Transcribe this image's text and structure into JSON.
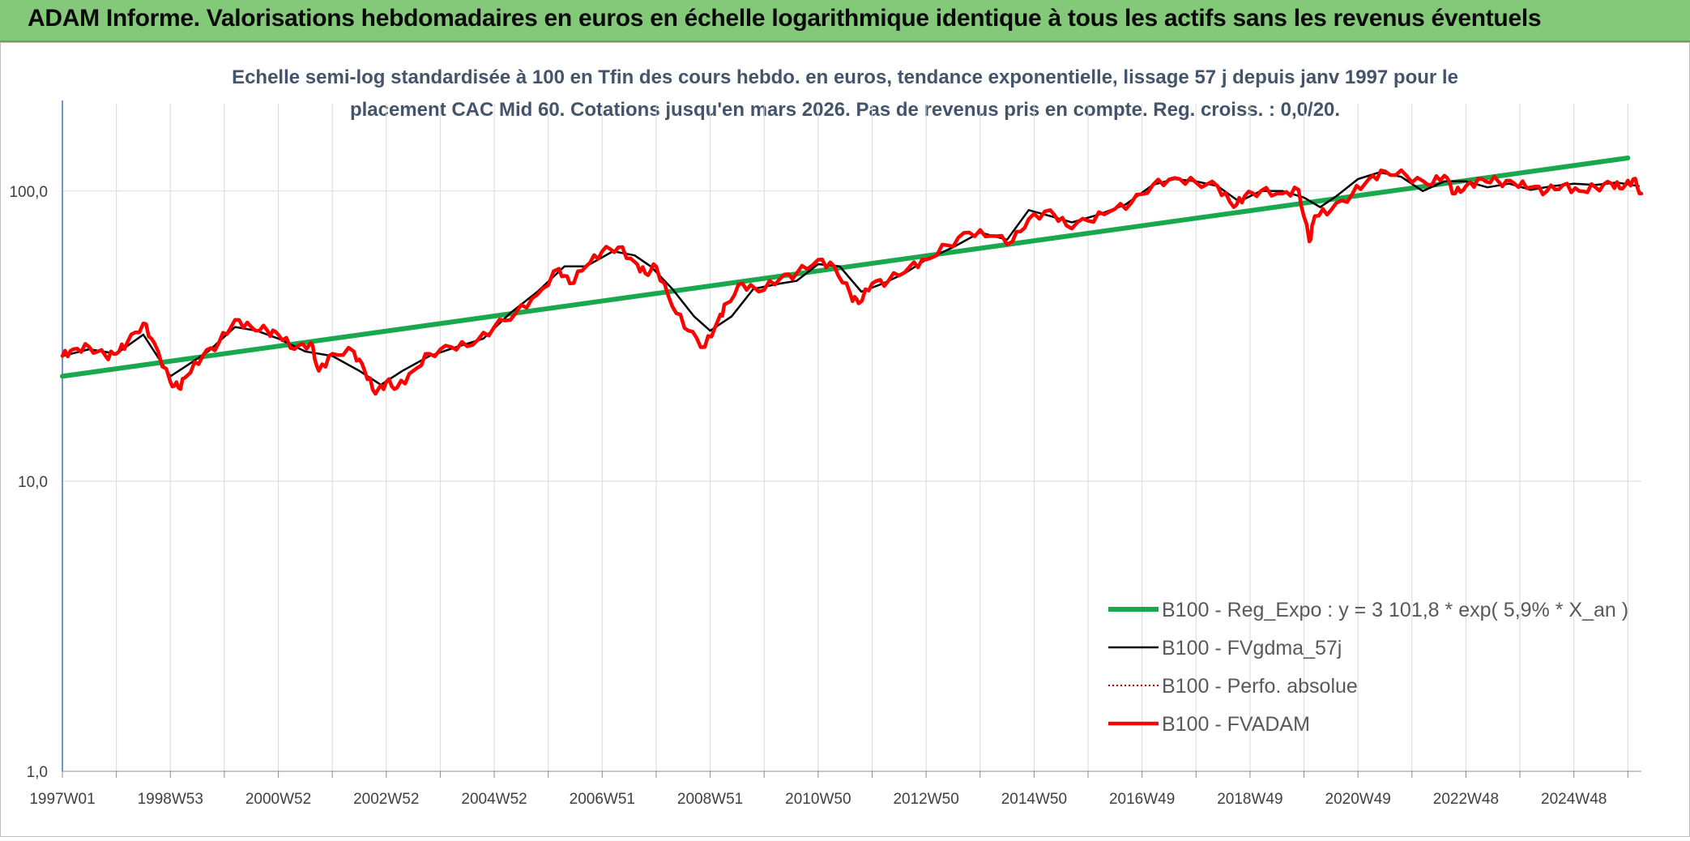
{
  "header": {
    "title": "ADAM Informe. Valorisations hebdomadaires en euros en échelle logarithmique identique à tous les actifs sans les revenus éventuels"
  },
  "colors": {
    "banner": "#84c97a",
    "corner": "#f2b705",
    "trend": "#1aa84f",
    "smooth": "#000000",
    "perf": "#c00000",
    "adam": "#ff0000",
    "grid": "#d9d9d9",
    "axis": "#4472c4",
    "title_text": "#44546a"
  },
  "chart_data": {
    "type": "line",
    "title_lines": [
      "Echelle semi-log standardisée à 100 en Tfin des cours hebdo. en euros, tendance exponentielle, lissage 57 j depuis janv 1997 pour le",
      "placement CAC Mid 60. Cotations jusqu'en mars 2026. Pas de revenus pris en compte. Reg. croiss. : 0,0/20."
    ],
    "y_scale": "log",
    "ylim": [
      1,
      200
    ],
    "y_ticks": [
      {
        "value": 1,
        "label": "1,0"
      },
      {
        "value": 10,
        "label": "10,0"
      },
      {
        "value": 100,
        "label": "100,0"
      }
    ],
    "xlim": [
      1997.0,
      2026.25
    ],
    "x_ticks": [
      {
        "value": 1997.0,
        "label": "1997W01"
      },
      {
        "value": 1999.0,
        "label": "1998W53"
      },
      {
        "value": 2001.0,
        "label": "2000W52"
      },
      {
        "value": 2003.0,
        "label": "2002W52"
      },
      {
        "value": 2005.0,
        "label": "2004W52"
      },
      {
        "value": 2007.0,
        "label": "2006W51"
      },
      {
        "value": 2009.0,
        "label": "2008W51"
      },
      {
        "value": 2011.0,
        "label": "2010W50"
      },
      {
        "value": 2013.0,
        "label": "2012W50"
      },
      {
        "value": 2015.0,
        "label": "2014W50"
      },
      {
        "value": 2017.0,
        "label": "2016W49"
      },
      {
        "value": 2019.0,
        "label": "2018W49"
      },
      {
        "value": 2021.0,
        "label": "2020W49"
      },
      {
        "value": 2023.0,
        "label": "2022W48"
      },
      {
        "value": 2025.0,
        "label": "2024W48"
      }
    ],
    "legend_position": "bottom-right",
    "series": [
      {
        "name": "B100 - Reg_Expo : y = 3 101,8 * exp( 5,9% *  X_an )",
        "key": "trend",
        "style": "solid-thick",
        "x": [
          1997.0,
          2026.0
        ],
        "y": [
          23,
          130
        ]
      },
      {
        "name": "B100 - FVgdma_57j",
        "key": "smooth",
        "style": "solid",
        "x": [
          1997.0,
          1997.5,
          1998.0,
          1998.5,
          1999.0,
          1999.3,
          1999.7,
          2000.2,
          2000.6,
          2001.0,
          2001.5,
          2002.0,
          2002.5,
          2002.9,
          2003.3,
          2003.8,
          2004.3,
          2004.8,
          2005.3,
          2005.8,
          2006.3,
          2006.7,
          2007.2,
          2007.6,
          2007.9,
          2008.3,
          2008.7,
          2009.0,
          2009.4,
          2009.8,
          2010.3,
          2010.6,
          2011.0,
          2011.4,
          2011.8,
          2012.2,
          2012.6,
          2013.0,
          2013.5,
          2014.0,
          2014.5,
          2014.9,
          2015.3,
          2015.7,
          2016.2,
          2016.7,
          2017.2,
          2017.6,
          2018.0,
          2018.4,
          2018.8,
          2019.2,
          2019.6,
          2020.0,
          2020.3,
          2020.6,
          2021.0,
          2021.4,
          2021.8,
          2022.2,
          2022.6,
          2023.0,
          2023.4,
          2023.8,
          2024.2,
          2024.6,
          2025.0,
          2025.4,
          2025.8,
          2026.2
        ],
        "y": [
          27,
          28.5,
          27.5,
          32,
          23,
          25,
          28,
          34,
          33,
          31,
          28,
          27,
          24,
          21.5,
          24,
          27,
          29,
          31,
          38,
          45,
          55,
          55,
          62,
          60,
          55,
          46,
          37,
          33,
          37,
          46,
          48,
          49,
          56,
          55,
          45,
          48,
          52,
          58,
          64,
          72,
          68,
          86,
          82,
          78,
          83,
          90,
          105,
          110,
          108,
          104,
          92,
          100,
          100,
          95,
          88,
          96,
          110,
          116,
          112,
          100,
          108,
          108,
          103,
          106,
          101,
          104,
          106,
          105,
          107,
          104
        ]
      },
      {
        "name": "B100 - Perfo. absolue",
        "key": "perf",
        "style": "dotted",
        "x": [],
        "y": []
      },
      {
        "name": "B100 - FVADAM",
        "key": "adam",
        "style": "solid-thick",
        "x": [
          1997.0,
          1997.2,
          1997.5,
          1997.8,
          1998.0,
          1998.2,
          1998.5,
          1998.7,
          1999.0,
          1999.15,
          1999.3,
          1999.6,
          1999.9,
          2000.2,
          2000.5,
          2000.8,
          2001.0,
          2001.3,
          2001.6,
          2001.75,
          2002.0,
          2002.4,
          2002.6,
          2002.8,
          2003.0,
          2003.2,
          2003.5,
          2003.8,
          2004.2,
          2004.6,
          2005.0,
          2005.4,
          2005.8,
          2006.2,
          2006.4,
          2006.7,
          2007.0,
          2007.3,
          2007.6,
          2007.8,
          2008.0,
          2008.3,
          2008.6,
          2008.9,
          2009.15,
          2009.3,
          2009.6,
          2009.9,
          2010.3,
          2010.6,
          2011.0,
          2011.3,
          2011.6,
          2011.75,
          2012.0,
          2012.3,
          2012.7,
          2013.0,
          2013.4,
          2013.8,
          2014.2,
          2014.6,
          2014.9,
          2015.3,
          2015.6,
          2016.0,
          2016.4,
          2016.8,
          2017.2,
          2017.6,
          2018.0,
          2018.4,
          2018.7,
          2018.9,
          2019.2,
          2019.6,
          2019.9,
          2020.1,
          2020.2,
          2020.5,
          2020.9,
          2021.2,
          2021.5,
          2021.9,
          2022.3,
          2022.6,
          2022.8,
          2023.0,
          2023.3,
          2023.6,
          2023.9,
          2024.2,
          2024.5,
          2024.8,
          2025.1,
          2025.4,
          2025.7,
          2025.9,
          2026.1,
          2026.25
        ],
        "y": [
          27,
          28.5,
          29,
          27,
          27.5,
          30,
          35,
          30,
          22,
          21,
          23,
          27,
          30,
          36,
          34,
          33,
          32,
          28.5,
          30,
          24,
          27.5,
          28,
          24,
          20,
          22,
          21,
          24,
          27.5,
          29,
          29.5,
          34,
          38,
          44,
          54,
          48,
          55,
          62,
          64,
          57,
          52,
          55,
          40,
          33,
          29,
          36,
          41,
          48,
          45,
          50,
          52,
          58,
          55,
          44,
          41,
          48,
          49,
          55,
          58,
          65,
          72,
          70,
          67,
          80,
          86,
          76,
          79,
          85,
          91,
          105,
          111,
          107,
          104,
          88,
          96,
          100,
          98,
          101,
          67,
          82,
          86,
          98,
          110,
          117,
          113,
          105,
          113,
          98,
          104,
          110,
          108,
          106,
          103,
          100,
          105,
          100,
          103,
          106,
          102,
          110,
          98
        ]
      }
    ]
  }
}
